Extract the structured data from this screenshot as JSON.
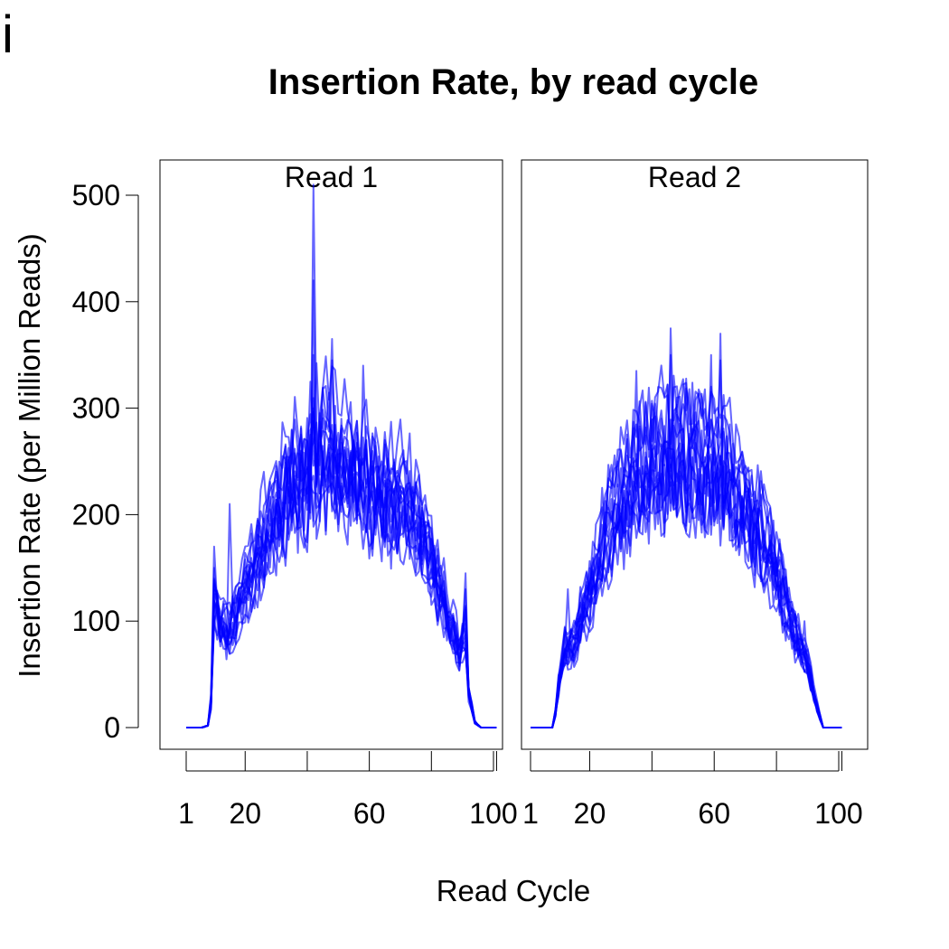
{
  "figure_letter": "i",
  "chart_data": {
    "type": "line",
    "title": "Insertion Rate, by read cycle",
    "xlabel": "Read Cycle",
    "ylabel": "Insertion Rate (per Million Reads)",
    "ylim": [
      0,
      510
    ],
    "yticks": [
      0,
      100,
      200,
      300,
      400,
      500
    ],
    "line_color": "#0000ff",
    "series_count_per_panel": 16,
    "panels": [
      {
        "label": "Read 1",
        "xlim": [
          1,
          101
        ],
        "xticks": [
          1,
          20,
          40,
          60,
          80,
          100
        ],
        "xtick_labels": [
          "1",
          "20",
          "",
          "60",
          "",
          "100"
        ],
        "seed": 7,
        "envelope": {
          "x": [
            1,
            6,
            8,
            9,
            10,
            12,
            15,
            20,
            25,
            30,
            35,
            40,
            42,
            45,
            50,
            55,
            60,
            65,
            70,
            75,
            80,
            85,
            89,
            91,
            92,
            94,
            96,
            98,
            101
          ],
          "y": [
            0,
            0,
            2,
            25,
            125,
            100,
            95,
            140,
            175,
            210,
            240,
            245,
            268,
            265,
            258,
            250,
            240,
            230,
            220,
            205,
            165,
            110,
            75,
            95,
            35,
            5,
            0,
            0,
            0
          ]
        },
        "spikes": [
          {
            "x": 10,
            "values": [
              170,
              150,
              140
            ]
          },
          {
            "x": 15,
            "values": [
              210
            ]
          },
          {
            "x": 42,
            "values": [
              510,
              420,
              350,
              300
            ]
          },
          {
            "x": 35,
            "values": [
              280
            ]
          },
          {
            "x": 48,
            "values": [
              345,
              365
            ]
          },
          {
            "x": 58,
            "values": [
              340
            ]
          },
          {
            "x": 91,
            "values": [
              145,
              130
            ]
          }
        ]
      },
      {
        "label": "Read 2",
        "xlim": [
          1,
          101
        ],
        "xticks": [
          1,
          20,
          40,
          60,
          80,
          100
        ],
        "xtick_labels": [
          "1",
          "20",
          "",
          "60",
          "",
          "100"
        ],
        "seed": 23,
        "envelope": {
          "x": [
            1,
            8,
            9,
            10,
            12,
            15,
            20,
            25,
            30,
            35,
            40,
            45,
            50,
            55,
            60,
            65,
            70,
            75,
            80,
            83,
            86,
            90,
            93,
            95,
            101
          ],
          "y": [
            0,
            0,
            15,
            40,
            75,
            80,
            130,
            185,
            215,
            245,
            255,
            262,
            260,
            255,
            250,
            240,
            215,
            185,
            150,
            120,
            90,
            60,
            20,
            0,
            0
          ]
        },
        "spikes": [
          {
            "x": 13,
            "values": [
              130
            ]
          },
          {
            "x": 46,
            "values": [
              375,
              350
            ]
          },
          {
            "x": 59,
            "values": [
              350
            ]
          },
          {
            "x": 62,
            "values": [
              370,
              345
            ]
          },
          {
            "x": 35,
            "values": [
              335
            ]
          },
          {
            "x": 89,
            "values": [
              100
            ]
          }
        ]
      }
    ]
  }
}
